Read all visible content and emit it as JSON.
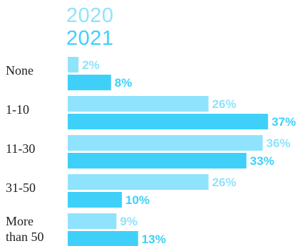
{
  "chart_data": {
    "type": "bar",
    "orientation": "horizontal",
    "categories": [
      "None",
      "1-10",
      "11-30",
      "31-50",
      "More than 50"
    ],
    "series": [
      {
        "name": "2020",
        "values": [
          2,
          26,
          36,
          26,
          9
        ],
        "labels": [
          "2%",
          "26%",
          "36%",
          "26%",
          "9%"
        ]
      },
      {
        "name": "2021",
        "values": [
          8,
          37,
          33,
          10,
          13
        ],
        "labels": [
          "8%",
          "37%",
          "33%",
          "10%",
          "13%"
        ]
      }
    ],
    "colors": {
      "2020": "#8fe3fc",
      "2021": "#3fd0fa",
      "category_text": "#222222"
    },
    "legend_position": "top-left",
    "grid": false,
    "xlim": [
      0,
      37
    ]
  }
}
